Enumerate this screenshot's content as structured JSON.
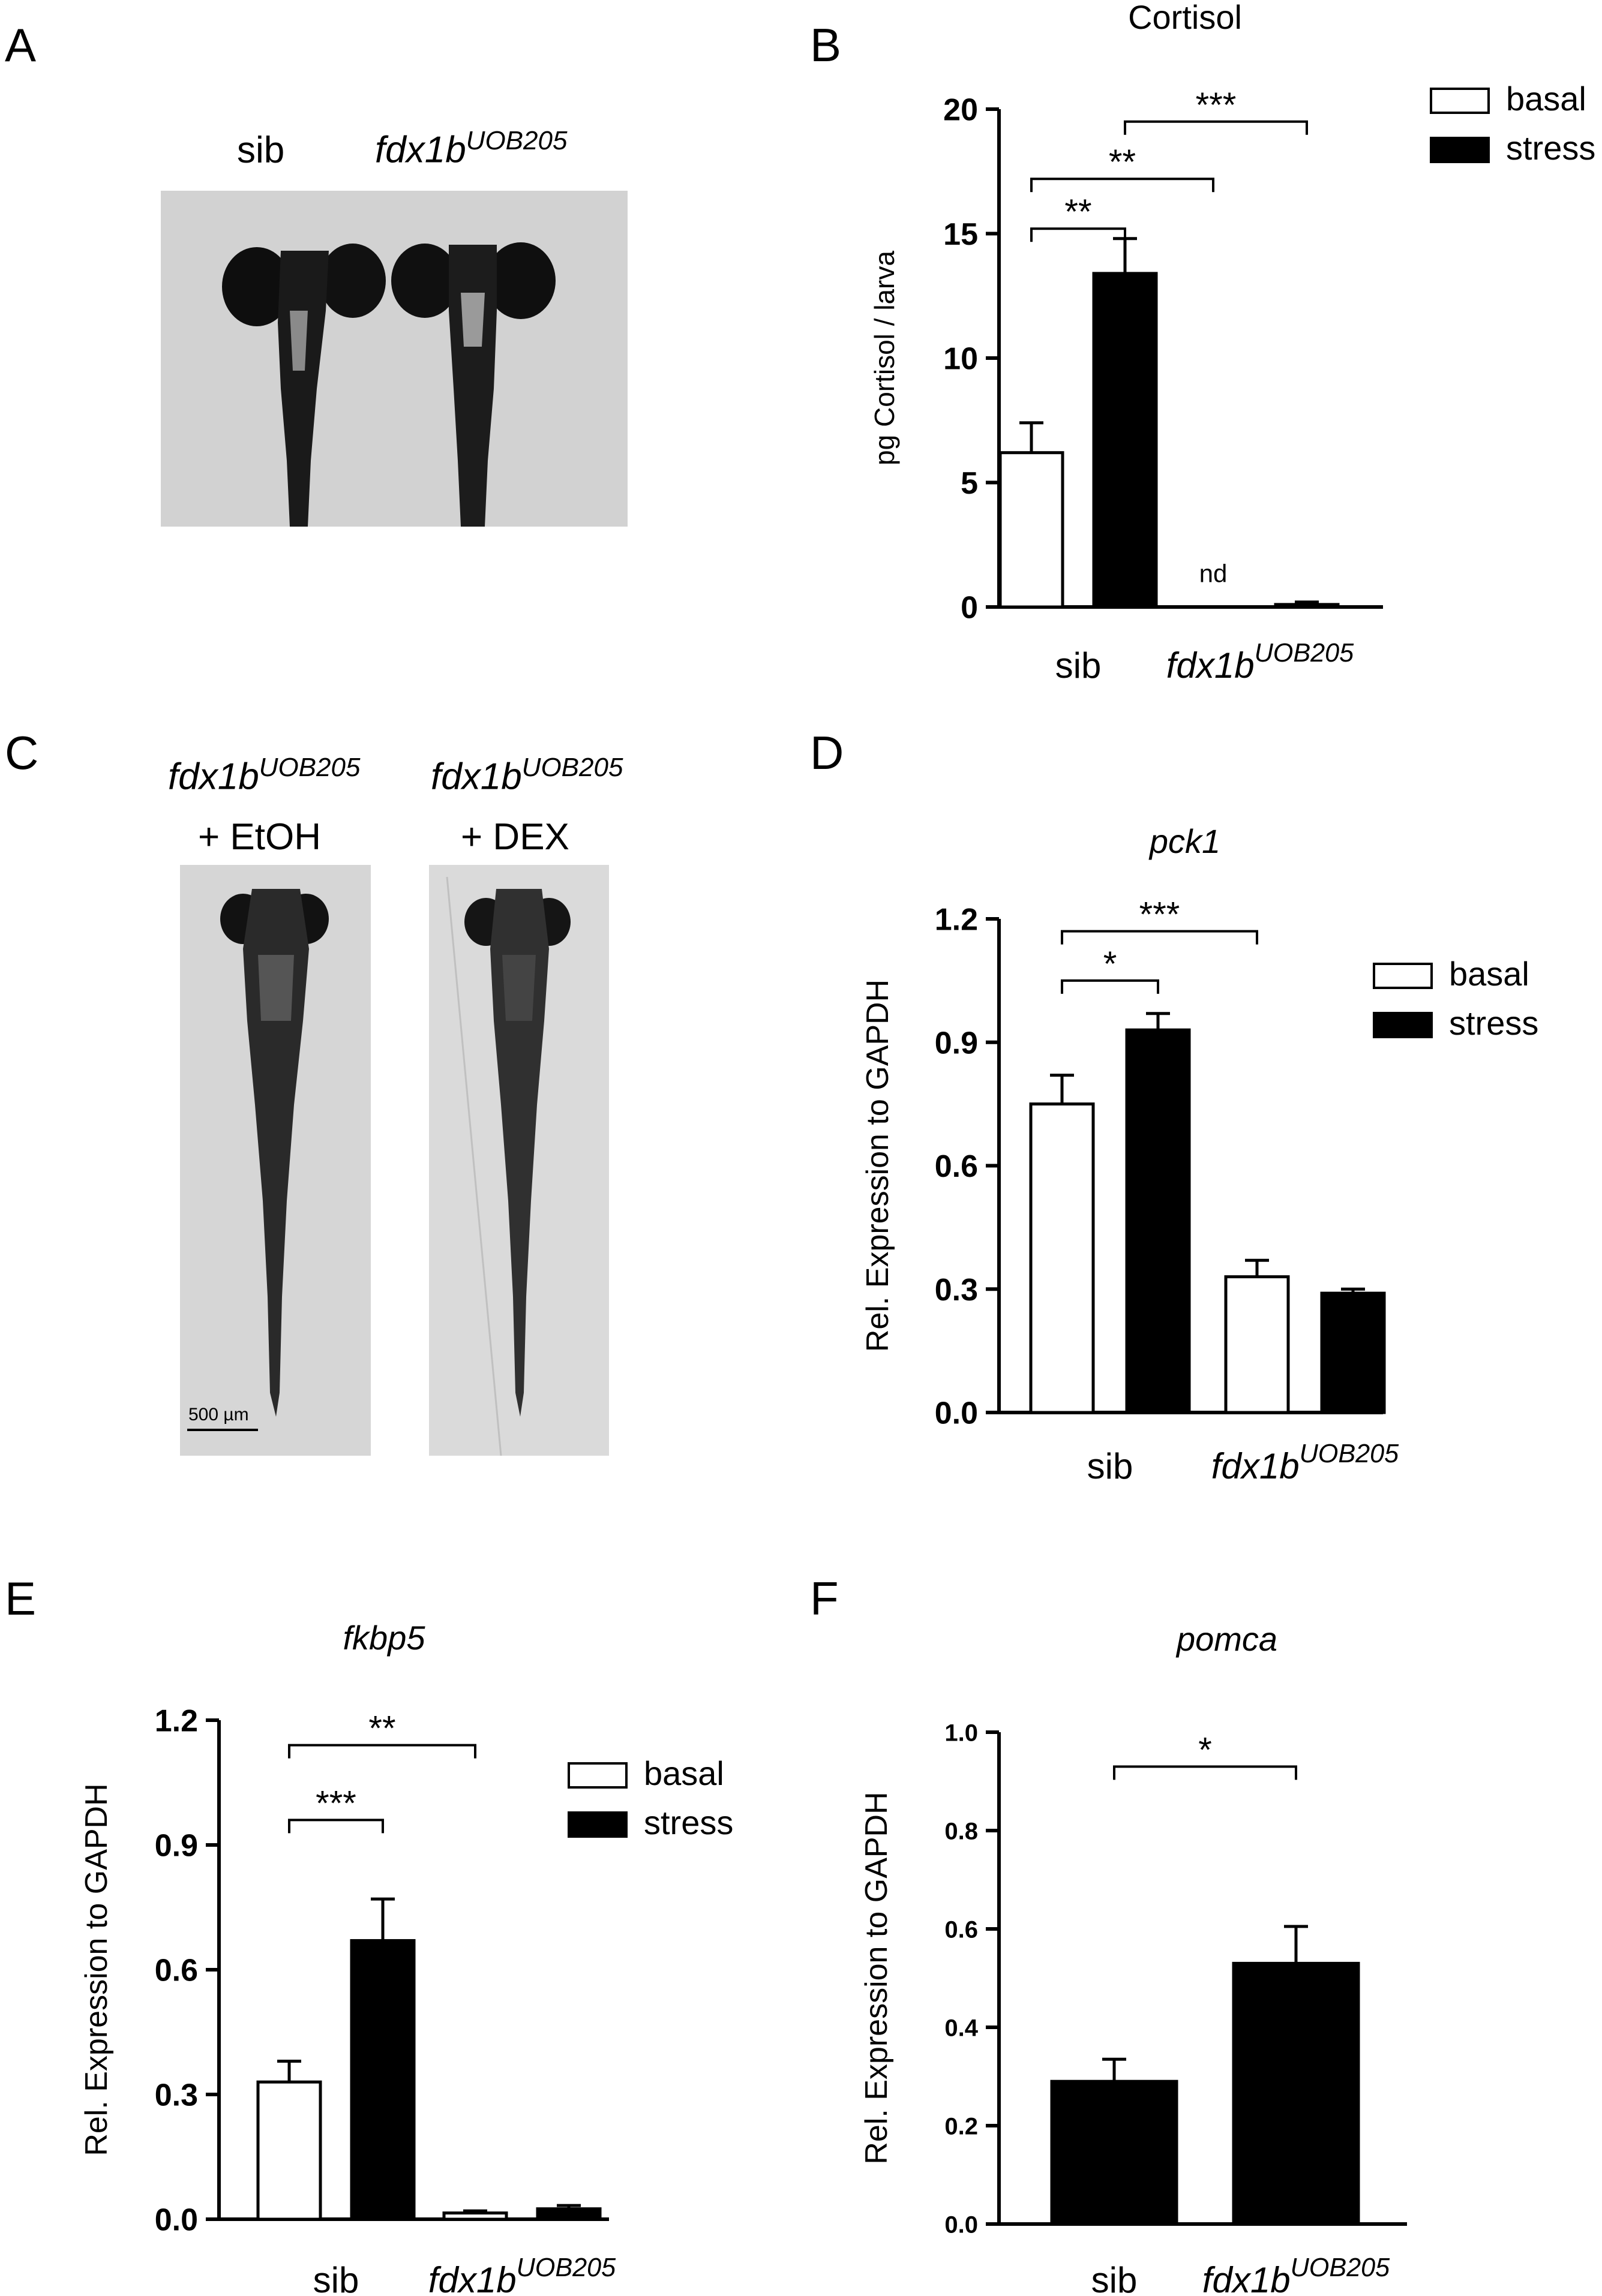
{
  "panels": {
    "A": {
      "letter": "A",
      "sib_label": "sib",
      "mutant_label": "fdx1b",
      "mutant_sup": "UOB205"
    },
    "C": {
      "letter": "C",
      "left_label": "fdx1b",
      "left_sup": "UOB205",
      "left_treatment": "+ EtOH",
      "right_label": "fdx1b",
      "right_sup": "UOB205",
      "right_treatment": "+ DEX",
      "scale_bar": "500 µm"
    },
    "B": {
      "letter": "B"
    },
    "D": {
      "letter": "D"
    },
    "E": {
      "letter": "E"
    },
    "F": {
      "letter": "F"
    }
  },
  "colors": {
    "basal": "#ffffff",
    "stress": "#000000",
    "axis": "#000000"
  },
  "chart_data": [
    {
      "id": "B",
      "type": "bar",
      "title": "Cortisol",
      "title_italic": false,
      "ylabel": "pg Cortisol / larva",
      "categories": [
        "sib",
        "fdx1b"
      ],
      "category_sup": [
        "",
        "UOB205"
      ],
      "ylim": [
        0,
        20
      ],
      "yticks": [
        "0",
        "5",
        "10",
        "15",
        "20"
      ],
      "ytick_values": [
        0,
        5,
        10,
        15,
        20
      ],
      "legend": [
        "basal",
        "stress"
      ],
      "series": [
        {
          "name": "basal",
          "values": [
            6.2,
            0
          ],
          "errors": [
            1.2,
            0
          ]
        },
        {
          "name": "stress",
          "values": [
            13.4,
            0.1
          ],
          "errors": [
            1.4,
            0.1
          ]
        }
      ],
      "annotations": [
        {
          "text": "nd",
          "category": 1,
          "series": 0,
          "value": 1.0
        }
      ],
      "significance": [
        {
          "text": "**",
          "from": [
            0,
            0
          ],
          "to": [
            0,
            1
          ],
          "level": 15.2
        },
        {
          "text": "**",
          "from": [
            0,
            0
          ],
          "to": [
            1,
            0
          ],
          "level": 17.2
        },
        {
          "text": "***",
          "from": [
            0,
            1
          ],
          "to": [
            1,
            1
          ],
          "level": 19.5
        }
      ]
    },
    {
      "id": "D",
      "type": "bar",
      "title": "pck1",
      "title_italic": true,
      "ylabel": "Rel. Expression to GAPDH",
      "categories": [
        "sib",
        "fdx1b"
      ],
      "category_sup": [
        "",
        "UOB205"
      ],
      "ylim": [
        0,
        1.2
      ],
      "yticks": [
        "0.0",
        "0.3",
        "0.6",
        "0.9",
        "1.2"
      ],
      "ytick_values": [
        0,
        0.3,
        0.6,
        0.9,
        1.2
      ],
      "legend": [
        "basal",
        "stress"
      ],
      "series": [
        {
          "name": "basal",
          "values": [
            0.75,
            0.33
          ],
          "errors": [
            0.07,
            0.04
          ]
        },
        {
          "name": "stress",
          "values": [
            0.93,
            0.29
          ],
          "errors": [
            0.04,
            0.01
          ]
        }
      ],
      "annotations": [],
      "significance": [
        {
          "text": "*",
          "from": [
            0,
            0
          ],
          "to": [
            0,
            1
          ],
          "level": 1.05
        },
        {
          "text": "***",
          "from": [
            0,
            0
          ],
          "to": [
            1,
            0
          ],
          "level": 1.17
        }
      ]
    },
    {
      "id": "E",
      "type": "bar",
      "title": "fkbp5",
      "title_italic": true,
      "ylabel": "Rel. Expression to GAPDH",
      "categories": [
        "sib",
        "fdx1b"
      ],
      "category_sup": [
        "",
        "UOB205"
      ],
      "ylim": [
        0,
        1.2
      ],
      "yticks": [
        "0.0",
        "0.3",
        "0.6",
        "0.9",
        "1.2"
      ],
      "ytick_values": [
        0,
        0.3,
        0.6,
        0.9,
        1.2
      ],
      "legend": [
        "basal",
        "stress"
      ],
      "series": [
        {
          "name": "basal",
          "values": [
            0.33,
            0.015
          ],
          "errors": [
            0.05,
            0.005
          ]
        },
        {
          "name": "stress",
          "values": [
            0.67,
            0.025
          ],
          "errors": [
            0.1,
            0.008
          ]
        }
      ],
      "annotations": [],
      "significance": [
        {
          "text": "***",
          "from": [
            0,
            0
          ],
          "to": [
            0,
            1
          ],
          "level": 0.96
        },
        {
          "text": "**",
          "from": [
            0,
            0
          ],
          "to": [
            1,
            0
          ],
          "level": 1.14
        }
      ]
    },
    {
      "id": "F",
      "type": "bar",
      "title": "pomca",
      "title_italic": true,
      "ylabel": "Rel. Expression to GAPDH",
      "categories": [
        "sib",
        "fdx1b"
      ],
      "category_sup": [
        "",
        "UOB205"
      ],
      "ylim": [
        0,
        1.0
      ],
      "yticks": [
        "0.0",
        "0.2",
        "0.4",
        "0.6",
        "0.8",
        "1.0"
      ],
      "ytick_values": [
        0,
        0.2,
        0.4,
        0.6,
        0.8,
        1.0
      ],
      "legend": [],
      "series": [
        {
          "name": "",
          "values": [
            0.29,
            0.53
          ],
          "errors": [
            0.045,
            0.075
          ]
        }
      ],
      "annotations": [],
      "significance": [
        {
          "text": "*",
          "from": [
            0,
            0
          ],
          "to": [
            1,
            0
          ],
          "level": 0.93
        }
      ]
    }
  ]
}
